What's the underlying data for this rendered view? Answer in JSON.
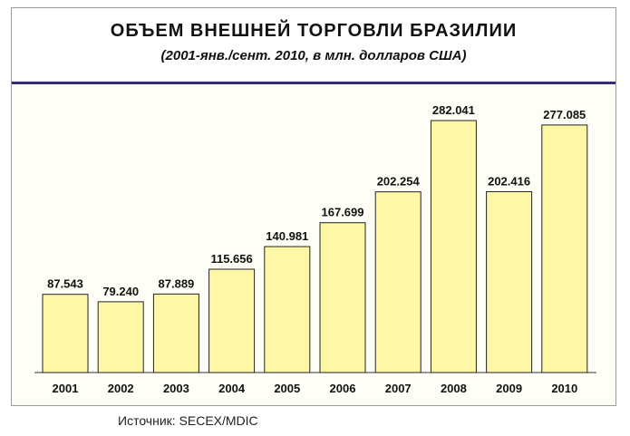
{
  "header": {
    "title": "ОБЪЕМ ВНЕШНЕЙ ТОРГОВЛИ БРАЗИЛИИ",
    "subtitle": "(2001-янв./сент. 2010, в млн. долларов США)"
  },
  "footer": {
    "source": "Источник: SECEX/MDIC"
  },
  "chart_data": {
    "type": "bar",
    "categories": [
      "2001",
      "2002",
      "2003",
      "2004",
      "2005",
      "2006",
      "2007",
      "2008",
      "2009",
      "2010"
    ],
    "values": [
      87543,
      79240,
      87889,
      115656,
      140981,
      167699,
      202254,
      282041,
      202416,
      277085
    ],
    "value_labels": [
      "87.543",
      "79.240",
      "87.889",
      "115.656",
      "140.981",
      "167.699",
      "202.254",
      "282.041",
      "202.416",
      "277.085"
    ],
    "ylim": [
      0,
      282041
    ],
    "grid": false,
    "legend": "none",
    "colors": {
      "bar_fill": "#fdf7a6",
      "bar_stroke": "#222222",
      "axis": "#333333"
    }
  }
}
